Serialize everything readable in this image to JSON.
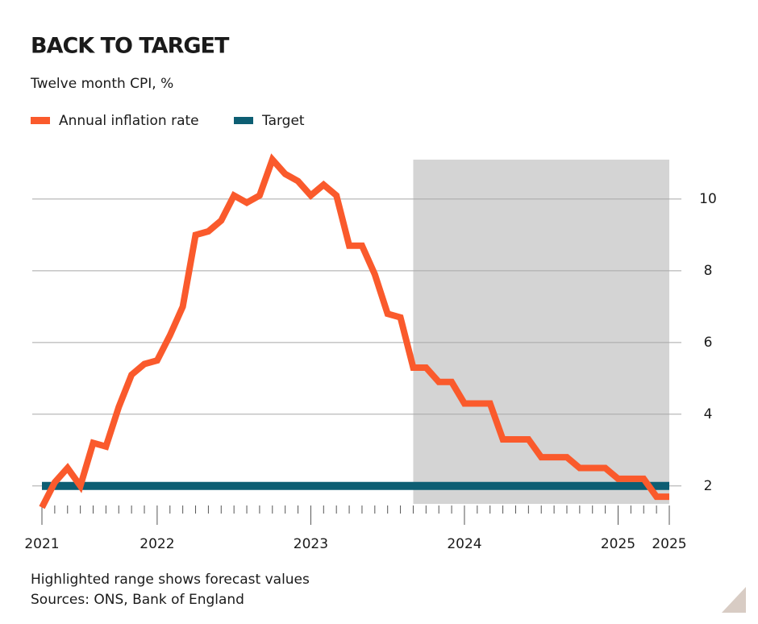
{
  "chart_data": {
    "type": "line",
    "title": "BACK TO TARGET",
    "subtitle": "Twelve month CPI, %",
    "notes": [
      "Highlighted range shows forecast values",
      "Sources: ONS, Bank of England"
    ],
    "categories": [
      "2021",
      null,
      null,
      null,
      null,
      null,
      null,
      null,
      null,
      "2022",
      null,
      null,
      null,
      null,
      null,
      null,
      null,
      null,
      null,
      null,
      null,
      "2023",
      null,
      null,
      null,
      null,
      null,
      null,
      null,
      null,
      null,
      null,
      null,
      "2024",
      null,
      null,
      null,
      null,
      null,
      null,
      null,
      null,
      null,
      null,
      null,
      "2025",
      null,
      null,
      null,
      "2025"
    ],
    "series": [
      {
        "name": "Annual inflation rate",
        "color": "#fa5a2c",
        "values": [
          1.4,
          2.1,
          2.5,
          2.0,
          3.2,
          3.1,
          4.2,
          5.1,
          5.4,
          5.5,
          6.2,
          7.0,
          9.0,
          9.1,
          9.4,
          10.1,
          9.9,
          10.1,
          11.1,
          10.7,
          10.5,
          10.1,
          10.4,
          10.1,
          8.7,
          8.7,
          7.9,
          6.8,
          6.7,
          5.3,
          5.3,
          4.9,
          4.9,
          4.3,
          4.3,
          4.3,
          3.3,
          3.3,
          3.3,
          2.8,
          2.8,
          2.8,
          2.5,
          2.5,
          2.5,
          2.2,
          2.2,
          2.2,
          1.7,
          1.7
        ]
      },
      {
        "name": "Target",
        "color": "#0d5e73",
        "values": [
          2,
          2,
          2,
          2,
          2,
          2,
          2,
          2,
          2,
          2,
          2,
          2,
          2,
          2,
          2,
          2,
          2,
          2,
          2,
          2,
          2,
          2,
          2,
          2,
          2,
          2,
          2,
          2,
          2,
          2,
          2,
          2,
          2,
          2,
          2,
          2,
          2,
          2,
          2,
          2,
          2,
          2,
          2,
          2,
          2,
          2,
          2,
          2,
          2,
          2
        ]
      }
    ],
    "highlight": [
      29,
      49
    ],
    "ylim": [
      1.5,
      11.1
    ],
    "yticks": [
      2,
      4,
      6,
      8,
      10
    ],
    "grid": true,
    "y_axis_side": "right"
  }
}
